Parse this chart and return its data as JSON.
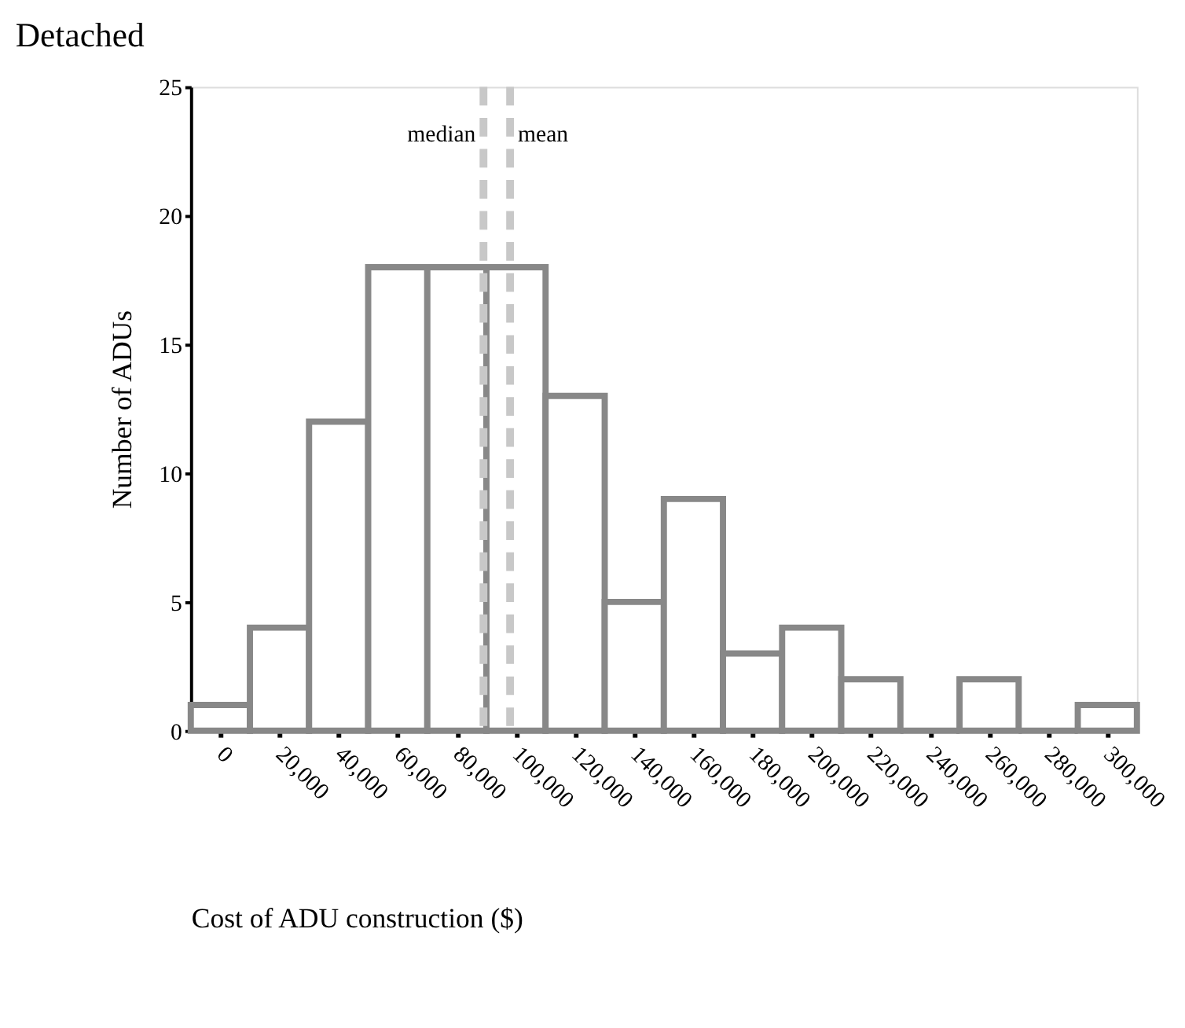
{
  "chart_data": {
    "type": "histogram",
    "title": "Detached",
    "xlabel": "Cost of ADU construction ($)",
    "ylabel": "Number of ADUs",
    "bins": [
      -10000,
      10000,
      30000,
      50000,
      70000,
      90000,
      110000,
      130000,
      150000,
      170000,
      190000,
      210000,
      230000,
      250000,
      270000,
      290000,
      310000
    ],
    "values": [
      1,
      4,
      12,
      18,
      18,
      18,
      13,
      5,
      9,
      3,
      4,
      2,
      0,
      2,
      0,
      1
    ],
    "color": "#888888",
    "xlim": [
      -10000,
      310000
    ],
    "xticks": [
      0,
      {
        "value": 20000,
        "label": "20,000"
      },
      {
        "value": 40000,
        "label": "40,000"
      },
      {
        "value": 60000,
        "label": "60,000"
      },
      {
        "value": 80000,
        "label": "80,000"
      },
      {
        "value": 100000,
        "label": "100,000"
      },
      {
        "value": 120000,
        "label": "120,000"
      },
      {
        "value": 140000,
        "label": "140,000"
      },
      {
        "value": 160000,
        "label": "160,000"
      },
      {
        "value": 180000,
        "label": "180,000"
      },
      {
        "value": 200000,
        "label": "200,000"
      },
      {
        "value": 220000,
        "label": "220,000"
      },
      {
        "value": 240000,
        "label": "240,000"
      },
      {
        "value": 260000,
        "label": "260,000"
      },
      {
        "value": 280000,
        "label": "280,000"
      },
      {
        "value": 300000,
        "label": "300,000"
      }
    ],
    "ylim": [
      0,
      25
    ],
    "yticks": [
      0,
      5,
      10,
      15,
      20,
      25
    ],
    "ref_lines": [
      {
        "axis": "x",
        "value": 89000,
        "label": "median",
        "color": "#c8c8c8",
        "line_style": "dashed"
      },
      {
        "axis": "x",
        "value": 98000,
        "label": "mean",
        "color": "#c8c8c8",
        "line_style": "dashed"
      }
    ],
    "grid": false
  }
}
